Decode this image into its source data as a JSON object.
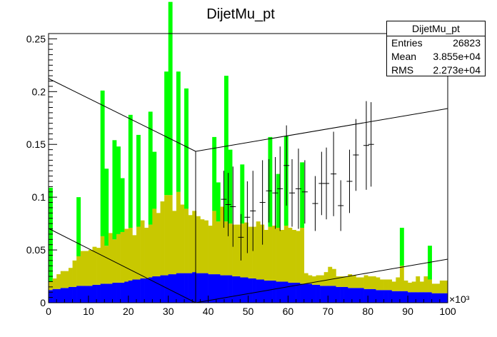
{
  "chart_data": {
    "type": "bar",
    "title": "DijetMu_pt",
    "xlabel": "",
    "ylabel": "",
    "xlim": [
      0,
      100
    ],
    "ylim": [
      0,
      0.255
    ],
    "x_scale_label": "×10³",
    "x_ticks": [
      0,
      10,
      20,
      30,
      40,
      50,
      60,
      70,
      80,
      90,
      100
    ],
    "y_ticks": [
      0,
      0.05,
      0.1,
      0.15,
      0.2,
      0.25
    ],
    "x_tick_labels": [
      "0",
      "10",
      "20",
      "30",
      "40",
      "50",
      "60",
      "70",
      "80",
      "90",
      "100"
    ],
    "y_tick_labels": [
      "0",
      "0.05",
      "0.1",
      "0.15",
      "0.2",
      "0.25"
    ],
    "bin_width": 1,
    "series": [
      {
        "color": "#0000ff",
        "values": [
          0.012,
          0.013,
          0.013,
          0.014,
          0.014,
          0.015,
          0.015,
          0.016,
          0.016,
          0.016,
          0.016,
          0.017,
          0.017,
          0.018,
          0.018,
          0.018,
          0.019,
          0.019,
          0.019,
          0.02,
          0.021,
          0.022,
          0.022,
          0.023,
          0.023,
          0.024,
          0.025,
          0.025,
          0.026,
          0.026,
          0.027,
          0.027,
          0.028,
          0.028,
          0.028,
          0.028,
          0.029,
          0.028,
          0.028,
          0.028,
          0.027,
          0.027,
          0.027,
          0.026,
          0.026,
          0.026,
          0.025,
          0.025,
          0.024,
          0.024,
          0.023,
          0.023,
          0.022,
          0.022,
          0.021,
          0.021,
          0.021,
          0.02,
          0.02,
          0.02,
          0.019,
          0.019,
          0.019,
          0.018,
          0.018,
          0.018,
          0.017,
          0.017,
          0.016,
          0.016,
          0.016,
          0.016,
          0.015,
          0.015,
          0.015,
          0.014,
          0.014,
          0.014,
          0.014,
          0.013,
          0.013,
          0.013,
          0.012,
          0.012,
          0.012,
          0.012,
          0.011,
          0.011,
          0.011,
          0.011,
          0.01,
          0.01,
          0.01,
          0.01,
          0.01,
          0.01,
          0.009,
          0.009,
          0.009,
          0.009
        ]
      },
      {
        "color": "#c8c800",
        "values": [
          0.008,
          0.01,
          0.014,
          0.016,
          0.016,
          0.018,
          0.025,
          0.028,
          0.033,
          0.033,
          0.034,
          0.036,
          0.035,
          0.045,
          0.036,
          0.048,
          0.041,
          0.046,
          0.048,
          0.05,
          0.05,
          0.042,
          0.05,
          0.055,
          0.048,
          0.05,
          0.064,
          0.06,
          0.07,
          0.076,
          0.075,
          0.06,
          0.077,
          0.065,
          0.061,
          0.055,
          0.058,
          0.054,
          0.051,
          0.05,
          0.046,
          0.06,
          0.05,
          0.065,
          0.051,
          0.049,
          0.049,
          0.049,
          0.051,
          0.052,
          0.049,
          0.049,
          0.055,
          0.052,
          0.048,
          0.051,
          0.052,
          0.051,
          0.049,
          0.053,
          0.052,
          0.05,
          0.049,
          0.053,
          0.01,
          0.008,
          0.008,
          0.009,
          0.01,
          0.013,
          0.018,
          0.016,
          0.01,
          0.01,
          0.01,
          0.013,
          0.012,
          0.01,
          0.01,
          0.013,
          0.012,
          0.012,
          0.012,
          0.01,
          0.01,
          0.01,
          0.009,
          0.013,
          0.024,
          0.01,
          0.009,
          0.01,
          0.015,
          0.01,
          0.015,
          0.012,
          0.009,
          0.009,
          0.012,
          0.012
        ]
      },
      {
        "color": "#00ff00",
        "values": [
          0.089,
          0.0,
          0.0,
          0.0,
          0.0,
          0.0,
          0.0,
          0.056,
          0.0,
          0.0,
          0.0,
          0.0,
          0.0,
          0.138,
          0.073,
          0.0,
          0.094,
          0.083,
          0.051,
          0.0,
          0.107,
          0.0,
          0.087,
          0.0,
          0.0,
          0.107,
          0.054,
          0.0,
          0.0,
          0.117,
          0.183,
          0.0,
          0.114,
          0.0,
          0.114,
          0.0,
          0.0,
          0.0,
          0.0,
          0.0,
          0.0,
          0.07,
          0.037,
          0.0,
          0.138,
          0.07,
          0.0,
          0.0,
          0.056,
          0.0,
          0.0,
          0.0,
          0.0,
          0.0,
          0.0,
          0.085,
          0.0,
          0.051,
          0.0,
          0.085,
          0.0,
          0.0,
          0.0,
          0.062,
          0.0,
          0.0,
          0.0,
          0.0,
          0.0,
          0.0,
          0.0,
          0.0,
          0.0,
          0.0,
          0.0,
          0.0,
          0.0,
          0.0,
          0.0,
          0.0,
          0.0,
          0.0,
          0.0,
          0.0,
          0.0,
          0.0,
          0.0,
          0.0,
          0.036,
          0.0,
          0.0,
          0.0,
          0.0,
          0.0,
          0.0,
          0.032,
          0.0,
          0.0,
          0.0,
          0.0
        ]
      }
    ],
    "error_points": [
      {
        "x": 43.9,
        "y": 0.098,
        "err": 0.027
      },
      {
        "x": 45.0,
        "y": 0.093,
        "err": 0.03
      },
      {
        "x": 46.2,
        "y": 0.091,
        "err": 0.038
      },
      {
        "x": 48.2,
        "y": 0.062,
        "err": 0.022
      },
      {
        "x": 49.8,
        "y": 0.081,
        "err": 0.034
      },
      {
        "x": 51.2,
        "y": 0.087,
        "err": 0.038
      },
      {
        "x": 53.6,
        "y": 0.095,
        "err": 0.04
      },
      {
        "x": 55.2,
        "y": 0.106,
        "err": 0.03
      },
      {
        "x": 56.8,
        "y": 0.104,
        "err": 0.034
      },
      {
        "x": 58.0,
        "y": 0.108,
        "err": 0.04
      },
      {
        "x": 59.6,
        "y": 0.13,
        "err": 0.038
      },
      {
        "x": 61.0,
        "y": 0.104,
        "err": 0.032
      },
      {
        "x": 62.6,
        "y": 0.108,
        "err": 0.038
      },
      {
        "x": 64.2,
        "y": 0.105,
        "err": 0.03
      },
      {
        "x": 66.8,
        "y": 0.094,
        "err": 0.026
      },
      {
        "x": 68.4,
        "y": 0.113,
        "err": 0.03
      },
      {
        "x": 69.6,
        "y": 0.113,
        "err": 0.034
      },
      {
        "x": 71.4,
        "y": 0.122,
        "err": 0.04
      },
      {
        "x": 73.2,
        "y": 0.092,
        "err": 0.024
      },
      {
        "x": 75.4,
        "y": 0.115,
        "err": 0.03
      },
      {
        "x": 77.0,
        "y": 0.14,
        "err": 0.034
      },
      {
        "x": 79.6,
        "y": 0.149,
        "err": 0.042
      },
      {
        "x": 80.8,
        "y": 0.15,
        "err": 0.04
      }
    ],
    "stats": {
      "name": "DijetMu_pt",
      "rows": [
        {
          "label": "Entries",
          "value": "26823"
        },
        {
          "label": "Mean",
          "value": "3.855e+04"
        },
        {
          "label": "RMS",
          "value": "2.273e+04"
        }
      ]
    }
  }
}
